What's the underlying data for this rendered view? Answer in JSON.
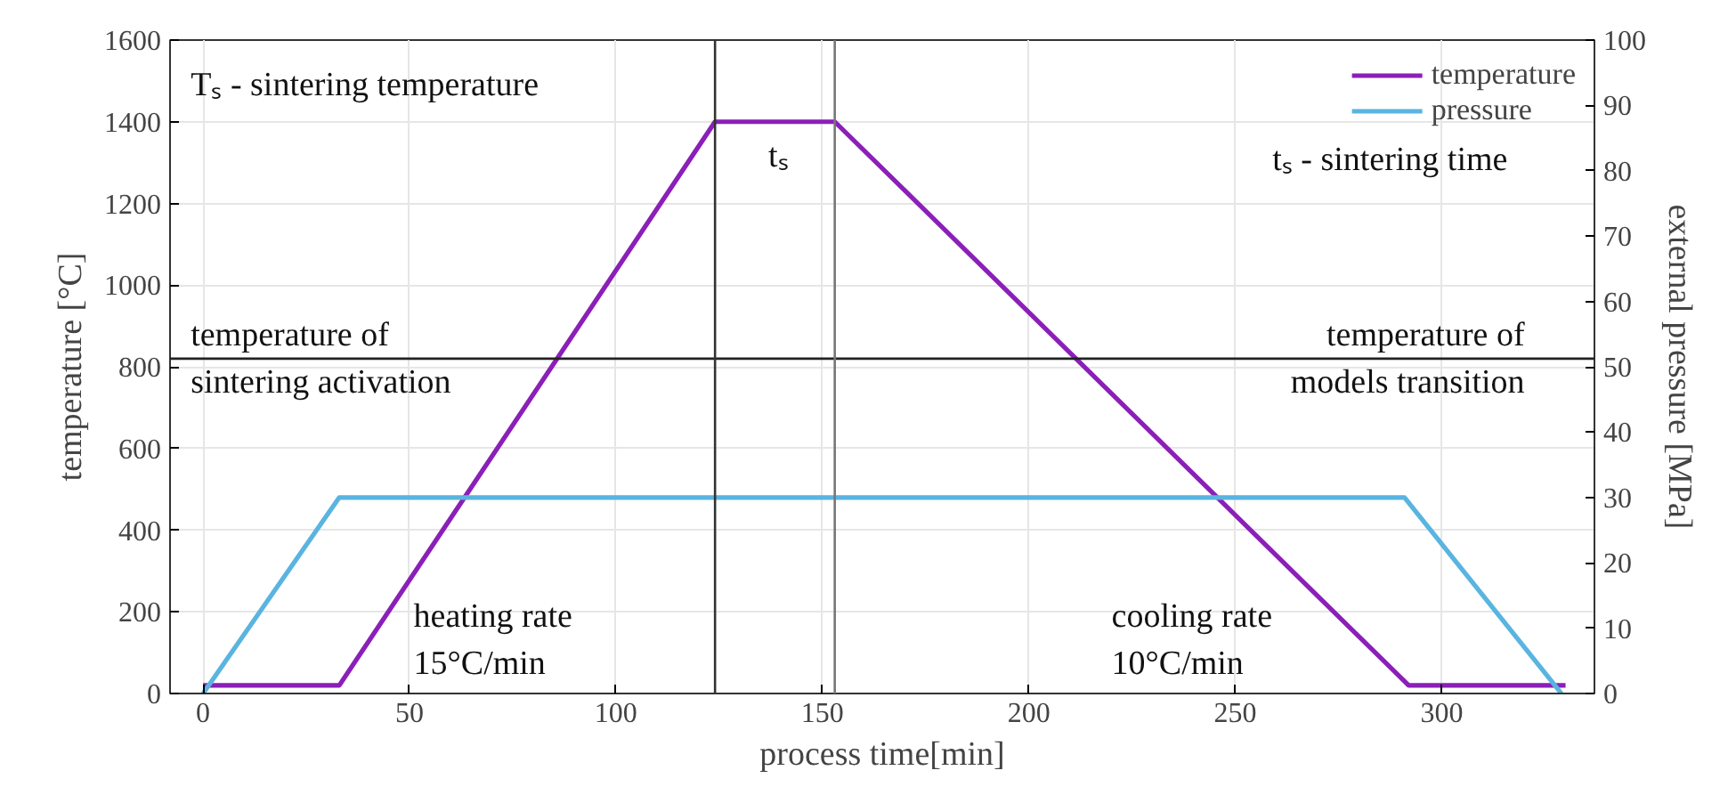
{
  "chart_data": {
    "type": "line",
    "xlabel": "process time[min]",
    "ylabel": "temperature [°C]",
    "y2label": "external pressure [MPa]",
    "xlim": [
      -8,
      337
    ],
    "xticks": [
      0,
      50,
      100,
      150,
      200,
      250,
      300
    ],
    "ylim": [
      0,
      1600
    ],
    "yticks": [
      0,
      200,
      400,
      600,
      800,
      1000,
      1200,
      1400,
      1600
    ],
    "y2lim": [
      0,
      100
    ],
    "y2ticks": [
      0,
      10,
      20,
      30,
      40,
      50,
      60,
      70,
      80,
      90,
      100
    ],
    "series": [
      {
        "name": "temperature",
        "color": "#8b1fb8",
        "x": [
          0,
          33,
          124,
          153,
          292,
          330
        ],
        "values": [
          20,
          20,
          1400,
          1400,
          20,
          20
        ]
      },
      {
        "name": "pressure",
        "color": "#5ab4e0",
        "axis": "y2",
        "x": [
          0,
          33,
          291,
          329
        ],
        "values": [
          0,
          30,
          30,
          0
        ]
      }
    ],
    "ref_lines": [
      {
        "axis": "y",
        "value": 820,
        "color": "#222222"
      },
      {
        "axis": "x",
        "value": 124,
        "color": "#333333"
      },
      {
        "axis": "x",
        "value": 153,
        "color": "#777777"
      }
    ],
    "annotations": [
      "Tₛ - sintering temperature",
      "tₛ",
      "tₛ - sintering time",
      "temperature of\nsintering activation",
      "temperature of\nmodels transition",
      "heating rate\n15°C/min",
      "cooling rate\n10°C/min"
    ],
    "grid": true,
    "legend": "top right",
    "line_style": "solid",
    "marker": "none"
  }
}
